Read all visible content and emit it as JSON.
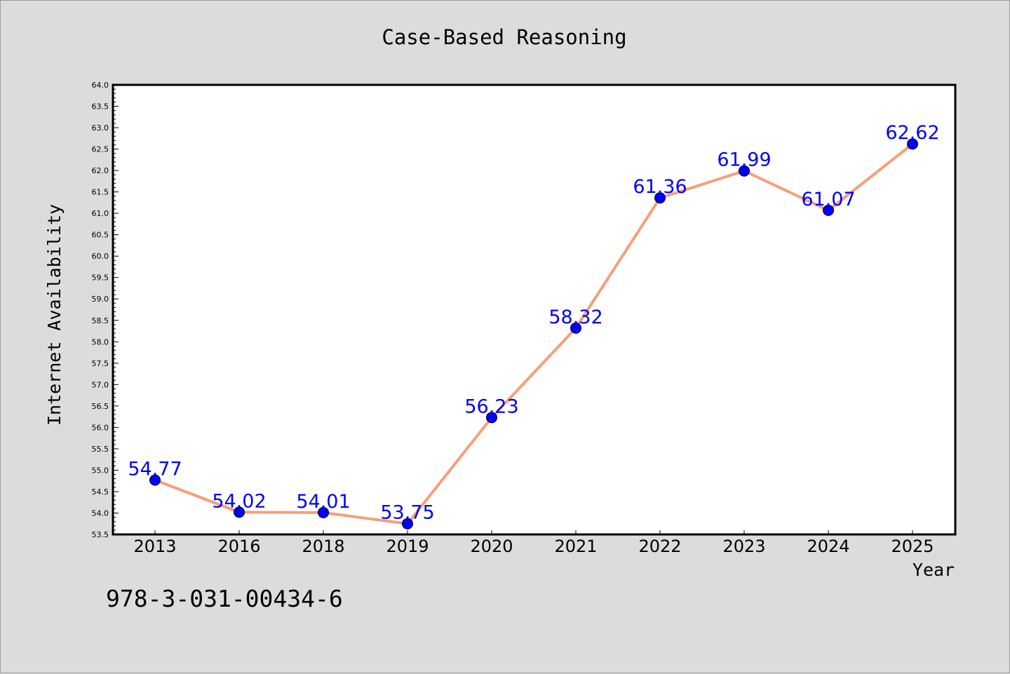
{
  "colors": {
    "background": "#dcdcdc",
    "plot_background": "#ffffff",
    "line": "#f4a07a",
    "marker": "#0000ff",
    "data_label": "#0000ff"
  },
  "footnote": "978-3-031-00434-6",
  "chart_data": {
    "type": "line",
    "title": "Case-Based Reasoning",
    "xlabel": "Year",
    "ylabel": "Internet Availability",
    "categories": [
      "2013",
      "2016",
      "2018",
      "2019",
      "2020",
      "2021",
      "2022",
      "2023",
      "2024",
      "2025"
    ],
    "series": [
      {
        "values": [
          54.77,
          54.02,
          54.01,
          53.75,
          56.23,
          58.32,
          61.36,
          61.99,
          61.07,
          62.62
        ],
        "value_labels": [
          "54.77",
          "54.02",
          "54.01",
          "53.75",
          "56.23",
          "58.32",
          "61.36",
          "61.99",
          "61.07",
          "62.62"
        ]
      }
    ],
    "ylim": [
      53.5,
      64.0
    ],
    "yticks": [
      "53.5",
      "54.0",
      "54.5",
      "55.0",
      "55.5",
      "56.0",
      "56.5",
      "57.0",
      "57.5",
      "58.0",
      "58.5",
      "59.0",
      "59.5",
      "60.0",
      "60.5",
      "61.0",
      "61.5",
      "62.0",
      "62.5",
      "63.0",
      "63.5",
      "64.0"
    ],
    "grid": false,
    "legend": "none"
  }
}
